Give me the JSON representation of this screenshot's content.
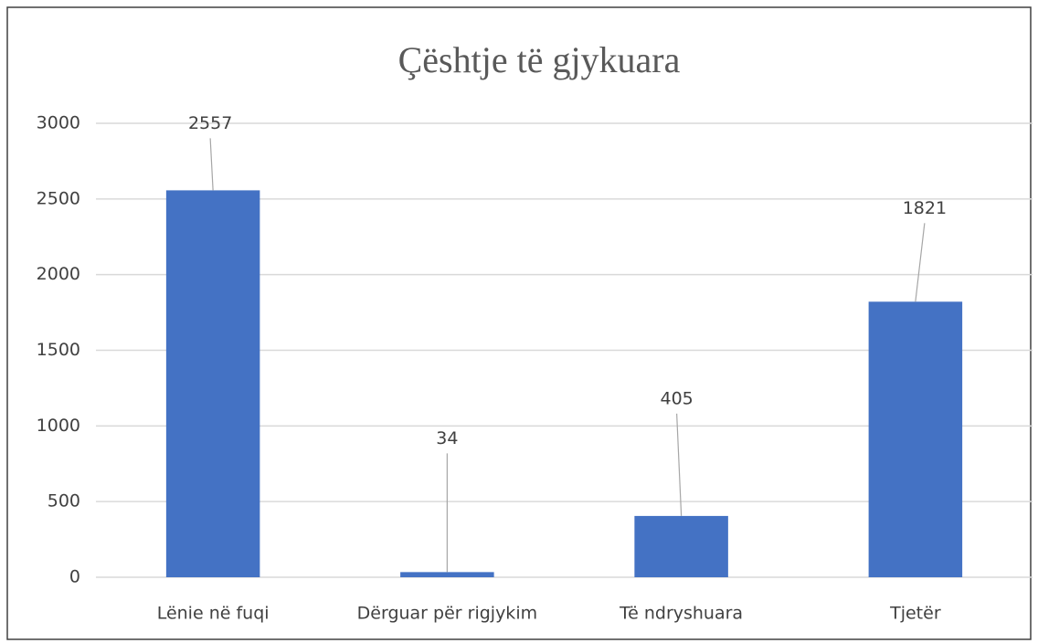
{
  "chart_data": {
    "type": "bar",
    "title": "Çështje të gjykuara",
    "categories": [
      "Lënie në fuqi",
      "Dërguar për rigjykim",
      "Të ndryshuara",
      "Tjetër"
    ],
    "values": [
      2557,
      34,
      405,
      1821
    ],
    "color": "#4472c4",
    "ylim": [
      0,
      3000
    ],
    "yticks": [
      0,
      500,
      1000,
      1500,
      2000,
      2500,
      3000
    ],
    "grid": true
  }
}
